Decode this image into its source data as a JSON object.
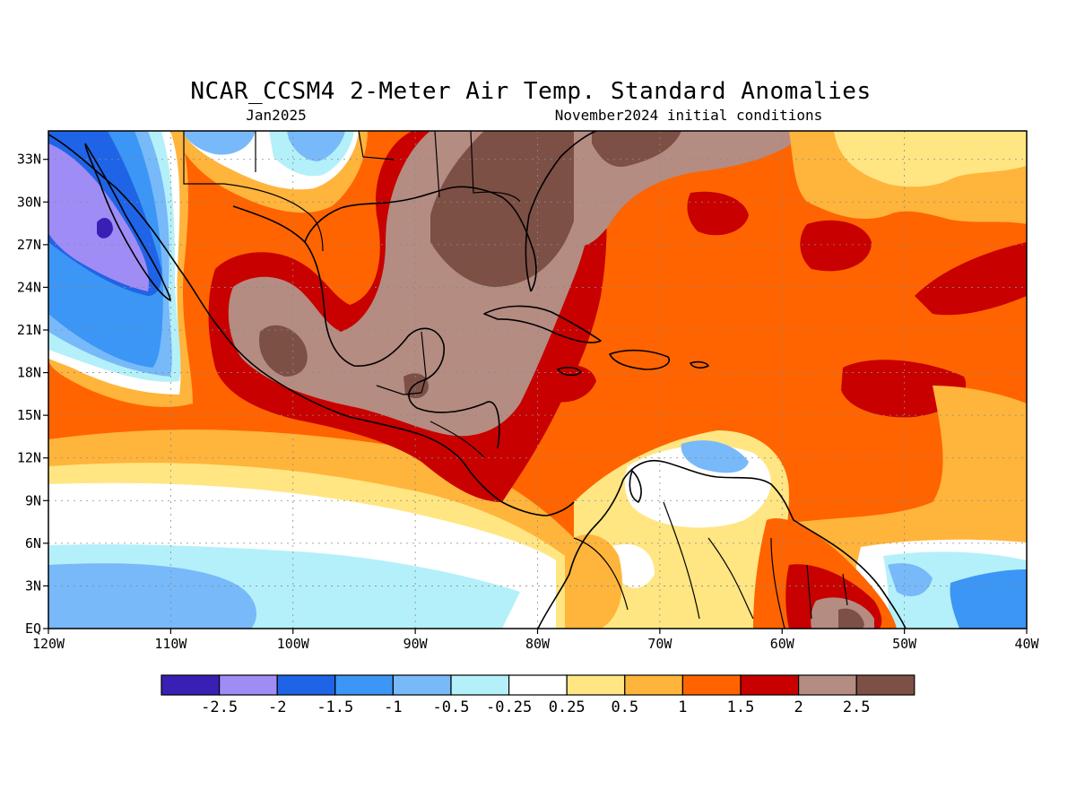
{
  "title": "NCAR_CCSM4 2-Meter Air Temp. Standard Anomalies",
  "valid_month": "Jan2025",
  "init_conditions": "November2024 initial conditions",
  "longitude_labels": [
    "120W",
    "110W",
    "100W",
    "90W",
    "80W",
    "70W",
    "60W",
    "50W",
    "40W"
  ],
  "latitude_labels": [
    "EQ",
    "3N",
    "6N",
    "9N",
    "12N",
    "15N",
    "18N",
    "21N",
    "24N",
    "27N",
    "30N",
    "33N"
  ],
  "colorbar": {
    "labels": [
      "-2.5",
      "-2",
      "-1.5",
      "-1",
      "-0.5",
      "-0.25",
      "0.25",
      "0.5",
      "1",
      "1.5",
      "2",
      "2.5"
    ],
    "colors": [
      "#3a1fb5",
      "#a08cf5",
      "#1f64e6",
      "#3c96f5",
      "#78b9fa",
      "#b4f0fa",
      "#ffffff",
      "#ffe682",
      "#ffb43c",
      "#ff6400",
      "#c80000",
      "#b48c82",
      "#7d5046"
    ]
  },
  "map_extent": {
    "lon_min": -120,
    "lon_max": -40,
    "lat_min": 0,
    "lat_max": 35
  }
}
